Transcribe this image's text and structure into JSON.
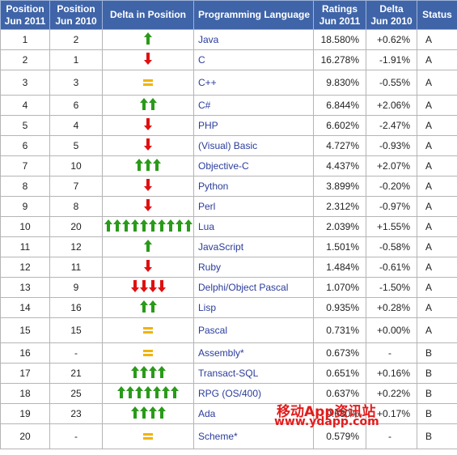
{
  "headers": {
    "pos2011": [
      "Position",
      "Jun 2011"
    ],
    "pos2010": [
      "Position",
      "Jun 2010"
    ],
    "delta_pos": "Delta in Position",
    "language": "Programming Language",
    "ratings": [
      "Ratings",
      "Jun 2011"
    ],
    "delta": [
      "Delta",
      "Jun 2010"
    ],
    "status": "Status"
  },
  "colors": {
    "up": "#2a9a1a",
    "down": "#e01010",
    "equal": "#f0b400",
    "header_bg": "#3f64a8",
    "link": "#2a3c9c"
  },
  "rows": [
    {
      "p2011": "1",
      "p2010": "2",
      "dir": "up",
      "count": 1,
      "lang": "Java",
      "rating": "18.580%",
      "delta": "+0.62%",
      "status": "A"
    },
    {
      "p2011": "2",
      "p2010": "1",
      "dir": "down",
      "count": 1,
      "lang": "C",
      "rating": "16.278%",
      "delta": "-1.91%",
      "status": "A"
    },
    {
      "p2011": "3",
      "p2010": "3",
      "dir": "equal",
      "count": 1,
      "lang": "C++",
      "rating": "9.830%",
      "delta": "-0.55%",
      "status": "A"
    },
    {
      "p2011": "4",
      "p2010": "6",
      "dir": "up",
      "count": 2,
      "lang": "C#",
      "rating": "6.844%",
      "delta": "+2.06%",
      "status": "A"
    },
    {
      "p2011": "5",
      "p2010": "4",
      "dir": "down",
      "count": 1,
      "lang": "PHP",
      "rating": "6.602%",
      "delta": "-2.47%",
      "status": "A"
    },
    {
      "p2011": "6",
      "p2010": "5",
      "dir": "down",
      "count": 1,
      "lang": "(Visual) Basic",
      "rating": "4.727%",
      "delta": "-0.93%",
      "status": "A"
    },
    {
      "p2011": "7",
      "p2010": "10",
      "dir": "up",
      "count": 3,
      "lang": "Objective-C",
      "rating": "4.437%",
      "delta": "+2.07%",
      "status": "A"
    },
    {
      "p2011": "8",
      "p2010": "7",
      "dir": "down",
      "count": 1,
      "lang": "Python",
      "rating": "3.899%",
      "delta": "-0.20%",
      "status": "A"
    },
    {
      "p2011": "9",
      "p2010": "8",
      "dir": "down",
      "count": 1,
      "lang": "Perl",
      "rating": "2.312%",
      "delta": "-0.97%",
      "status": "A"
    },
    {
      "p2011": "10",
      "p2010": "20",
      "dir": "up",
      "count": 10,
      "lang": "Lua",
      "rating": "2.039%",
      "delta": "+1.55%",
      "status": "A"
    },
    {
      "p2011": "11",
      "p2010": "12",
      "dir": "up",
      "count": 1,
      "lang": "JavaScript",
      "rating": "1.501%",
      "delta": "-0.58%",
      "status": "A"
    },
    {
      "p2011": "12",
      "p2010": "11",
      "dir": "down",
      "count": 1,
      "lang": "Ruby",
      "rating": "1.484%",
      "delta": "-0.61%",
      "status": "A"
    },
    {
      "p2011": "13",
      "p2010": "9",
      "dir": "down",
      "count": 4,
      "lang": "Delphi/Object Pascal",
      "rating": "1.070%",
      "delta": "-1.50%",
      "status": "A"
    },
    {
      "p2011": "14",
      "p2010": "16",
      "dir": "up",
      "count": 2,
      "lang": "Lisp",
      "rating": "0.935%",
      "delta": "+0.28%",
      "status": "A"
    },
    {
      "p2011": "15",
      "p2010": "15",
      "dir": "equal",
      "count": 1,
      "lang": "Pascal",
      "rating": "0.731%",
      "delta": "+0.00%",
      "status": "A"
    },
    {
      "p2011": "16",
      "p2010": "-",
      "dir": "equal",
      "count": 1,
      "lang": "Assembly*",
      "rating": "0.673%",
      "delta": "-",
      "status": "B"
    },
    {
      "p2011": "17",
      "p2010": "21",
      "dir": "up",
      "count": 4,
      "lang": "Transact-SQL",
      "rating": "0.651%",
      "delta": "+0.16%",
      "status": "B"
    },
    {
      "p2011": "18",
      "p2010": "25",
      "dir": "up",
      "count": 7,
      "lang": "RPG (OS/400)",
      "rating": "0.637%",
      "delta": "+0.22%",
      "status": "B"
    },
    {
      "p2011": "19",
      "p2010": "23",
      "dir": "up",
      "count": 4,
      "lang": "Ada",
      "rating": "0.630%",
      "delta": "+0.17%",
      "status": "B"
    },
    {
      "p2011": "20",
      "p2010": "-",
      "dir": "equal",
      "count": 1,
      "lang": "Scheme*",
      "rating": "0.579%",
      "delta": "-",
      "status": "B"
    }
  ],
  "watermark": {
    "line1": "移动App资讯站",
    "line2": "www.ydapp.com"
  }
}
